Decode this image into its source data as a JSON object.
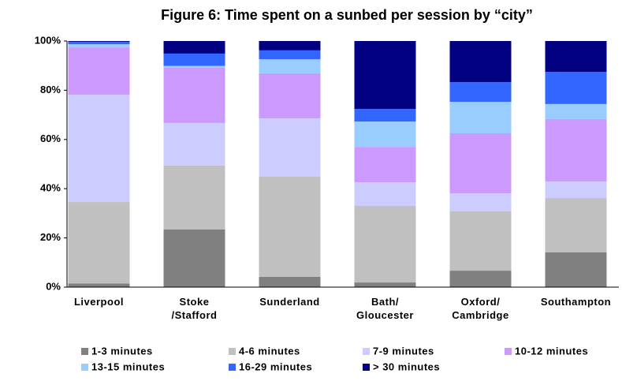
{
  "chart_data": {
    "type": "stacked_bar",
    "title": "Figure 6: Time spent on a sunbed per session by “city”",
    "categories": [
      "Liverpool",
      "Stoke /Stafford",
      "Sunderland",
      "Bath/ Gloucester",
      "Oxford/ Cambridge",
      "Southampton"
    ],
    "series": [
      {
        "name": "1-3 minutes",
        "color": "#808080",
        "values": [
          1.5,
          23.4,
          4.2,
          1.9,
          6.7,
          14.1
        ]
      },
      {
        "name": "4-6 minutes",
        "color": "#c0c0c0",
        "values": [
          33.1,
          26.0,
          40.7,
          31.1,
          24.1,
          22.1
        ]
      },
      {
        "name": "7-9 minutes",
        "color": "#ccccff",
        "values": [
          43.6,
          17.3,
          23.7,
          9.6,
          7.3,
          6.7
        ]
      },
      {
        "name": "10-12 minutes",
        "color": "#cc99ff",
        "values": [
          19.2,
          22.4,
          18.3,
          14.4,
          24.4,
          25.4
        ]
      },
      {
        "name": "13-15 minutes",
        "color": "#99ccff",
        "values": [
          1.3,
          0.8,
          5.7,
          10.3,
          12.8,
          6.1
        ]
      },
      {
        "name": "16-29 minutes",
        "color": "#3366ff",
        "values": [
          1.0,
          5.0,
          3.6,
          5.1,
          8.0,
          13.1
        ]
      },
      {
        "name": "> 30 minutes",
        "color": "#000080",
        "values": [
          0.3,
          5.1,
          3.8,
          27.6,
          16.7,
          12.5
        ]
      }
    ],
    "ylim": [
      0,
      100
    ],
    "yticks": [
      {
        "value": 0,
        "label": "0%"
      },
      {
        "value": 20,
        "label": "20%"
      },
      {
        "value": 40,
        "label": "40%"
      },
      {
        "value": 60,
        "label": "60%"
      },
      {
        "value": 80,
        "label": "80%"
      },
      {
        "value": 100,
        "label": "100%"
      }
    ],
    "legend": "bottom"
  }
}
